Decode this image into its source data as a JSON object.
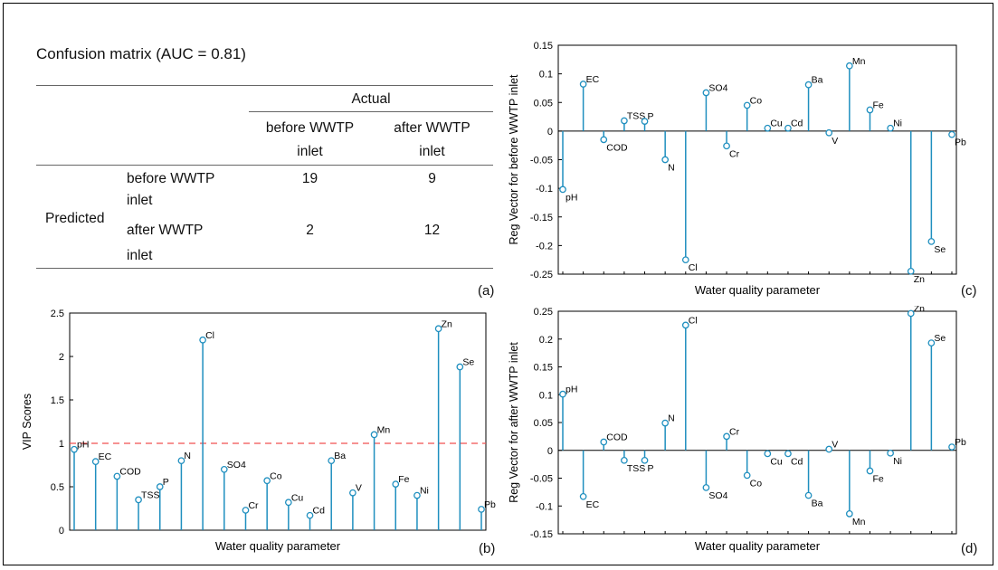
{
  "table": {
    "title": "Confusion matrix (AUC = 0.81)",
    "actual_label": "Actual",
    "predicted_label": "Predicted",
    "col1_line1": "before WWTP",
    "col1_line2": "inlet",
    "col2_line1": "after WWTP",
    "col2_line2": "inlet",
    "row1_line1": "before WWTP",
    "row1_line2": "inlet",
    "row2_line1": "after WWTP",
    "row2_line2": "inlet",
    "r1c1": "19",
    "r1c2": "9",
    "r2c1": "2",
    "r2c2": "12",
    "panel_label": "(a)"
  },
  "panel_labels": {
    "b": "(b)",
    "c": "(c)",
    "d": "(d)"
  },
  "colors": {
    "stem": "#1f8fbf",
    "threshold": "#f05050",
    "axis": "#000000"
  },
  "chart_data": [
    {
      "id": "b",
      "type": "stem",
      "xlabel": "Water quality parameter",
      "ylabel": "VIP Scores",
      "ylim": [
        0,
        2.5
      ],
      "yticks": [
        0,
        0.5,
        1,
        1.5,
        2,
        2.5
      ],
      "ytick_labels": [
        "0",
        "0.5",
        "1",
        "1.5",
        "2",
        "2.5"
      ],
      "reference_line": 1,
      "categories": [
        "pH",
        "EC",
        "COD",
        "TSS",
        "P",
        "N",
        "Cl",
        "SO4",
        "Cr",
        "Co",
        "Cu",
        "Cd",
        "Ba",
        "V",
        "Mn",
        "Fe",
        "Ni",
        "Zn",
        "Se",
        "Pb"
      ],
      "values": [
        0.93,
        0.79,
        0.62,
        0.35,
        0.5,
        0.8,
        2.19,
        0.7,
        0.23,
        0.57,
        0.32,
        0.17,
        0.8,
        0.43,
        1.1,
        0.53,
        0.4,
        2.32,
        1.88,
        0.24
      ]
    },
    {
      "id": "c",
      "type": "stem",
      "xlabel": "Water quality parameter",
      "ylabel": "Reg Vector for before WWTP inlet",
      "ylim": [
        -0.25,
        0.15
      ],
      "yticks": [
        -0.25,
        -0.2,
        -0.15,
        -0.1,
        -0.05,
        0,
        0.05,
        0.1,
        0.15
      ],
      "ytick_labels": [
        "-0.25",
        "-0.2",
        "-0.15",
        "-0.1",
        "-0.05",
        "0",
        "0.05",
        "0.1",
        "0.15"
      ],
      "categories": [
        "pH",
        "EC",
        "COD",
        "TSS",
        "P",
        "N",
        "Cl",
        "SO4",
        "Cr",
        "Co",
        "Cu",
        "Cd",
        "Ba",
        "V",
        "Mn",
        "Fe",
        "Ni",
        "Zn",
        "Se",
        "Pb"
      ],
      "values": [
        -0.102,
        0.082,
        -0.015,
        0.018,
        0.017,
        -0.05,
        -0.225,
        0.067,
        -0.026,
        0.045,
        0.005,
        0.005,
        0.081,
        -0.003,
        0.114,
        0.037,
        0.005,
        -0.245,
        -0.193,
        -0.006
      ]
    },
    {
      "id": "d",
      "type": "stem",
      "xlabel": "Water quality parameter",
      "ylabel": "Reg Vector for after WWTP inlet",
      "ylim": [
        -0.15,
        0.25
      ],
      "yticks": [
        -0.15,
        -0.1,
        -0.05,
        0,
        0.05,
        0.1,
        0.15,
        0.2,
        0.25
      ],
      "ytick_labels": [
        "-0.15",
        "-0.1",
        "-0.05",
        "0",
        "0.05",
        "0.1",
        "0.15",
        "0.2",
        "0.25"
      ],
      "categories": [
        "pH",
        "EC",
        "COD",
        "TSS",
        "P",
        "N",
        "Cl",
        "SO4",
        "Cr",
        "Co",
        "Cu",
        "Cd",
        "Ba",
        "V",
        "Mn",
        "Fe",
        "Ni",
        "Zn",
        "Se",
        "Pb"
      ],
      "values": [
        0.101,
        -0.083,
        0.015,
        -0.018,
        -0.018,
        0.049,
        0.225,
        -0.067,
        0.025,
        -0.045,
        -0.006,
        -0.006,
        -0.081,
        0.002,
        -0.114,
        -0.037,
        -0.005,
        0.246,
        0.193,
        0.006
      ]
    }
  ]
}
